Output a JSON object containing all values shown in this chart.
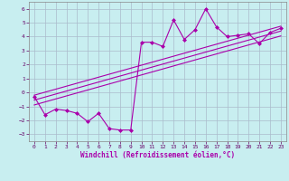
{
  "title": "",
  "xlabel": "Windchill (Refroidissement éolien,°C)",
  "ylabel": "",
  "bg_color": "#c8eef0",
  "line_color": "#aa00aa",
  "grid_color": "#aabbcc",
  "xlim": [
    -0.5,
    23.5
  ],
  "ylim": [
    -3.5,
    6.5
  ],
  "xticks": [
    0,
    1,
    2,
    3,
    4,
    5,
    6,
    7,
    8,
    9,
    10,
    11,
    12,
    13,
    14,
    15,
    16,
    17,
    18,
    19,
    20,
    21,
    22,
    23
  ],
  "yticks": [
    -3,
    -2,
    -1,
    0,
    1,
    2,
    3,
    4,
    5,
    6
  ],
  "data_x": [
    0,
    1,
    2,
    3,
    4,
    5,
    6,
    7,
    8,
    9,
    10,
    11,
    12,
    13,
    14,
    15,
    16,
    17,
    18,
    19,
    20,
    21,
    22,
    23
  ],
  "data_y": [
    -0.3,
    -1.6,
    -1.2,
    -1.3,
    -1.5,
    -2.1,
    -1.5,
    -2.6,
    -2.7,
    -2.7,
    3.6,
    3.6,
    3.3,
    5.2,
    3.8,
    4.5,
    6.0,
    4.7,
    4.0,
    4.1,
    4.2,
    3.5,
    4.3,
    4.6
  ],
  "reg_lines": [
    {
      "x0": 0,
      "y0": -0.9,
      "x1": 23,
      "y1": 4.05
    },
    {
      "x0": 0,
      "y0": -0.55,
      "x1": 23,
      "y1": 4.4
    },
    {
      "x0": 0,
      "y0": -0.2,
      "x1": 23,
      "y1": 4.75
    }
  ],
  "marker": "D",
  "markersize": 2,
  "linewidth": 0.8,
  "reg_linewidth": 0.8,
  "label_fontsize": 5.5,
  "tick_fontsize": 4.5
}
